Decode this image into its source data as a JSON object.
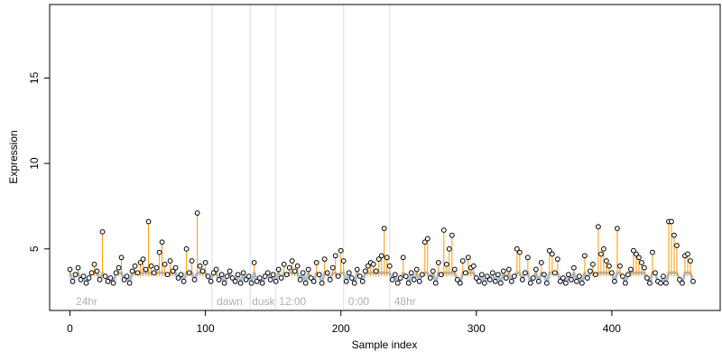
{
  "chart_data": {
    "type": "scatter",
    "title": "",
    "xlabel": "Sample index",
    "ylabel": "Expression",
    "xlim": [
      -15,
      480
    ],
    "ylim": [
      1.4,
      19.3
    ],
    "x_ticks": [
      0,
      100,
      200,
      300,
      400
    ],
    "y_ticks": [
      5,
      10,
      15
    ],
    "phase_boundaries": [
      105,
      133,
      152,
      202,
      236
    ],
    "phase_labels": [
      {
        "x": 3,
        "label": "24hr"
      },
      {
        "x": 107,
        "label": "dawn"
      },
      {
        "x": 133,
        "label": "dusk"
      },
      {
        "x": 153,
        "label": "12:00"
      },
      {
        "x": 204,
        "label": "0:00"
      },
      {
        "x": 238,
        "label": "48hr"
      }
    ],
    "baseline_color": "#a8bcd8",
    "stem_color": "#ff9900",
    "point_fill": "#ffffff",
    "point_stroke": "#000000",
    "grid": false,
    "points": [
      [
        0,
        3.8
      ],
      [
        2,
        3.1
      ],
      [
        4,
        3.5
      ],
      [
        6,
        3.9
      ],
      [
        8,
        3.2
      ],
      [
        10,
        3.4
      ],
      [
        12,
        3.0
      ],
      [
        14,
        3.3
      ],
      [
        16,
        3.6
      ],
      [
        18,
        4.1
      ],
      [
        20,
        3.7
      ],
      [
        22,
        3.2
      ],
      [
        24,
        6.0
      ],
      [
        26,
        3.4
      ],
      [
        28,
        3.1
      ],
      [
        30,
        3.3
      ],
      [
        32,
        3.0
      ],
      [
        34,
        3.6
      ],
      [
        36,
        3.9
      ],
      [
        38,
        4.5
      ],
      [
        40,
        3.2
      ],
      [
        42,
        3.4
      ],
      [
        44,
        3.0
      ],
      [
        46,
        3.7
      ],
      [
        48,
        4.0
      ],
      [
        50,
        3.6
      ],
      [
        52,
        4.2
      ],
      [
        54,
        4.4
      ],
      [
        56,
        3.8
      ],
      [
        58,
        6.6
      ],
      [
        60,
        4.0
      ],
      [
        62,
        3.6
      ],
      [
        64,
        3.9
      ],
      [
        66,
        4.8
      ],
      [
        68,
        5.4
      ],
      [
        70,
        4.1
      ],
      [
        72,
        3.5
      ],
      [
        74,
        4.3
      ],
      [
        76,
        3.7
      ],
      [
        78,
        3.9
      ],
      [
        80,
        3.3
      ],
      [
        82,
        3.5
      ],
      [
        84,
        3.1
      ],
      [
        86,
        5.0
      ],
      [
        88,
        3.6
      ],
      [
        90,
        4.3
      ],
      [
        92,
        3.2
      ],
      [
        94,
        7.1
      ],
      [
        96,
        4.0
      ],
      [
        98,
        3.7
      ],
      [
        100,
        4.2
      ],
      [
        102,
        3.4
      ],
      [
        104,
        3.1
      ],
      [
        106,
        3.6
      ],
      [
        108,
        3.8
      ],
      [
        110,
        3.2
      ],
      [
        112,
        3.5
      ],
      [
        114,
        3.0
      ],
      [
        116,
        3.4
      ],
      [
        118,
        3.7
      ],
      [
        120,
        3.3
      ],
      [
        122,
        3.1
      ],
      [
        124,
        3.5
      ],
      [
        126,
        3.0
      ],
      [
        128,
        3.6
      ],
      [
        130,
        3.2
      ],
      [
        132,
        3.4
      ],
      [
        134,
        3.0
      ],
      [
        136,
        4.2
      ],
      [
        138,
        3.1
      ],
      [
        140,
        3.3
      ],
      [
        142,
        3.0
      ],
      [
        144,
        3.4
      ],
      [
        146,
        3.6
      ],
      [
        148,
        3.2
      ],
      [
        150,
        3.5
      ],
      [
        152,
        3.1
      ],
      [
        154,
        3.8
      ],
      [
        156,
        3.3
      ],
      [
        158,
        4.1
      ],
      [
        160,
        3.5
      ],
      [
        162,
        3.9
      ],
      [
        164,
        4.3
      ],
      [
        166,
        3.7
      ],
      [
        168,
        4.0
      ],
      [
        170,
        3.2
      ],
      [
        172,
        3.6
      ],
      [
        174,
        3.0
      ],
      [
        176,
        3.8
      ],
      [
        178,
        3.3
      ],
      [
        180,
        3.1
      ],
      [
        182,
        4.2
      ],
      [
        184,
        3.5
      ],
      [
        186,
        3.0
      ],
      [
        188,
        4.4
      ],
      [
        190,
        3.6
      ],
      [
        192,
        3.2
      ],
      [
        194,
        3.9
      ],
      [
        196,
        4.6
      ],
      [
        198,
        3.4
      ],
      [
        200,
        4.9
      ],
      [
        202,
        4.3
      ],
      [
        204,
        3.1
      ],
      [
        206,
        3.6
      ],
      [
        208,
        3.3
      ],
      [
        210,
        3.0
      ],
      [
        212,
        3.8
      ],
      [
        214,
        3.4
      ],
      [
        216,
        3.1
      ],
      [
        218,
        3.7
      ],
      [
        220,
        4.0
      ],
      [
        222,
        4.2
      ],
      [
        224,
        4.1
      ],
      [
        226,
        3.7
      ],
      [
        228,
        4.4
      ],
      [
        230,
        4.6
      ],
      [
        232,
        6.2
      ],
      [
        234,
        4.5
      ],
      [
        236,
        4.0
      ],
      [
        238,
        3.2
      ],
      [
        240,
        3.5
      ],
      [
        242,
        3.0
      ],
      [
        244,
        3.3
      ],
      [
        246,
        4.5
      ],
      [
        248,
        3.4
      ],
      [
        250,
        3.0
      ],
      [
        252,
        3.6
      ],
      [
        254,
        3.2
      ],
      [
        256,
        3.8
      ],
      [
        258,
        3.1
      ],
      [
        260,
        3.5
      ],
      [
        262,
        5.4
      ],
      [
        264,
        5.6
      ],
      [
        266,
        3.3
      ],
      [
        268,
        3.7
      ],
      [
        270,
        3.0
      ],
      [
        272,
        4.2
      ],
      [
        274,
        3.5
      ],
      [
        276,
        6.1
      ],
      [
        278,
        4.1
      ],
      [
        280,
        5.0
      ],
      [
        282,
        5.8
      ],
      [
        284,
        3.8
      ],
      [
        286,
        3.2
      ],
      [
        288,
        3.0
      ],
      [
        290,
        4.3
      ],
      [
        292,
        3.6
      ],
      [
        294,
        4.5
      ],
      [
        296,
        3.9
      ],
      [
        298,
        4.0
      ],
      [
        300,
        3.3
      ],
      [
        302,
        3.1
      ],
      [
        304,
        3.5
      ],
      [
        306,
        3.0
      ],
      [
        308,
        3.4
      ],
      [
        310,
        3.2
      ],
      [
        312,
        3.6
      ],
      [
        314,
        3.1
      ],
      [
        316,
        3.5
      ],
      [
        318,
        3.0
      ],
      [
        320,
        3.7
      ],
      [
        322,
        3.3
      ],
      [
        324,
        3.8
      ],
      [
        326,
        3.1
      ],
      [
        328,
        3.4
      ],
      [
        330,
        5.0
      ],
      [
        332,
        4.8
      ],
      [
        334,
        3.2
      ],
      [
        336,
        3.6
      ],
      [
        338,
        4.5
      ],
      [
        340,
        3.0
      ],
      [
        342,
        3.3
      ],
      [
        344,
        3.8
      ],
      [
        346,
        3.1
      ],
      [
        348,
        4.2
      ],
      [
        350,
        3.5
      ],
      [
        352,
        3.0
      ],
      [
        354,
        4.9
      ],
      [
        356,
        4.7
      ],
      [
        358,
        3.6
      ],
      [
        360,
        4.4
      ],
      [
        362,
        3.1
      ],
      [
        364,
        3.3
      ],
      [
        366,
        3.0
      ],
      [
        368,
        3.5
      ],
      [
        370,
        3.2
      ],
      [
        372,
        3.9
      ],
      [
        374,
        3.1
      ],
      [
        376,
        3.4
      ],
      [
        378,
        3.0
      ],
      [
        380,
        4.6
      ],
      [
        382,
        3.3
      ],
      [
        384,
        3.7
      ],
      [
        386,
        4.1
      ],
      [
        388,
        3.5
      ],
      [
        390,
        6.3
      ],
      [
        392,
        4.7
      ],
      [
        394,
        5.0
      ],
      [
        396,
        4.3
      ],
      [
        398,
        4.0
      ],
      [
        400,
        3.6
      ],
      [
        402,
        3.1
      ],
      [
        404,
        6.2
      ],
      [
        406,
        4.0
      ],
      [
        408,
        3.4
      ],
      [
        410,
        3.0
      ],
      [
        412,
        3.5
      ],
      [
        414,
        3.8
      ],
      [
        416,
        4.9
      ],
      [
        418,
        4.7
      ],
      [
        420,
        4.5
      ],
      [
        422,
        4.2
      ],
      [
        424,
        3.9
      ],
      [
        426,
        3.3
      ],
      [
        428,
        3.0
      ],
      [
        430,
        4.8
      ],
      [
        432,
        3.6
      ],
      [
        434,
        3.1
      ],
      [
        436,
        3.0
      ],
      [
        438,
        3.4
      ],
      [
        440,
        3.0
      ],
      [
        442,
        6.6
      ],
      [
        444,
        6.6
      ],
      [
        446,
        5.8
      ],
      [
        448,
        5.2
      ],
      [
        450,
        3.2
      ],
      [
        452,
        3.0
      ],
      [
        454,
        4.6
      ],
      [
        456,
        4.7
      ],
      [
        458,
        4.3
      ],
      [
        460,
        3.1
      ]
    ]
  }
}
